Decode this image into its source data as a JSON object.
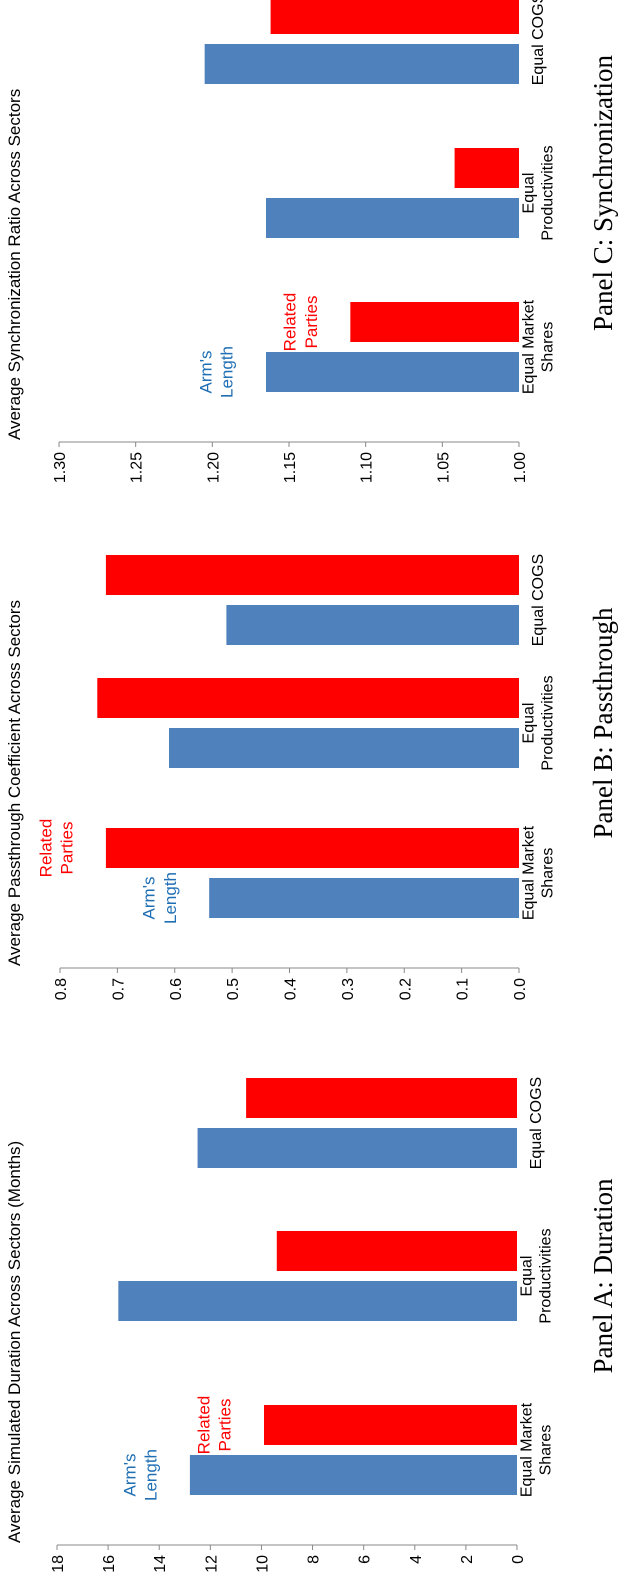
{
  "chart_data": [
    {
      "panel_caption": "Panel A: Duration",
      "type": "bar",
      "ylabel": "Average Simulated Duration Across Sectors (Months)",
      "categories": [
        "Equal Market\nShares",
        "Equal\nProductivities",
        "Equal COGS"
      ],
      "ylim": [
        0,
        18
      ],
      "yticks": [
        "0",
        "2",
        "4",
        "6",
        "8",
        "10",
        "12",
        "14",
        "16",
        "18"
      ],
      "series": [
        {
          "name": "Arm's\nLength",
          "color": "#4f81bd",
          "values": [
            12.8,
            15.6,
            12.5
          ]
        },
        {
          "name": "Related\nParties",
          "color": "#ff0000",
          "values": [
            9.9,
            9.4,
            10.6
          ]
        }
      ]
    },
    {
      "panel_caption": "Panel B: Passthrough",
      "type": "bar",
      "ylabel": "Average Passthrough Coefficient Across Sectors",
      "categories": [
        "Equal Market\nShares",
        "Equal\nProductivities",
        "Equal COGS"
      ],
      "ylim": [
        0,
        0.8
      ],
      "yticks": [
        "0.0",
        "0.1",
        "0.2",
        "0.3",
        "0.4",
        "0.5",
        "0.6",
        "0.7",
        "0.8"
      ],
      "series": [
        {
          "name": "Arm's\nLength",
          "color": "#4f81bd",
          "values": [
            0.54,
            0.61,
            0.51
          ]
        },
        {
          "name": "Related\nParties",
          "color": "#ff0000",
          "values": [
            0.72,
            0.735,
            0.72
          ]
        }
      ]
    },
    {
      "panel_caption": "Panel C: Synchronization",
      "type": "bar",
      "ylabel": "Average Synchronization Ratio Across Sectors",
      "categories": [
        "Equal Market\nShares",
        "Equal\nProductivities",
        "Equal COGS"
      ],
      "ylim": [
        1.0,
        1.3
      ],
      "yticks": [
        "1.00",
        "1.05",
        "1.10",
        "1.15",
        "1.20",
        "1.25",
        "1.30"
      ],
      "series": [
        {
          "name": "Arm's\nLength",
          "color": "#4f81bd",
          "values": [
            1.165,
            1.165,
            1.205
          ]
        },
        {
          "name": "Related\nParties",
          "color": "#ff0000",
          "values": [
            1.11,
            1.042,
            1.162
          ]
        }
      ]
    }
  ]
}
